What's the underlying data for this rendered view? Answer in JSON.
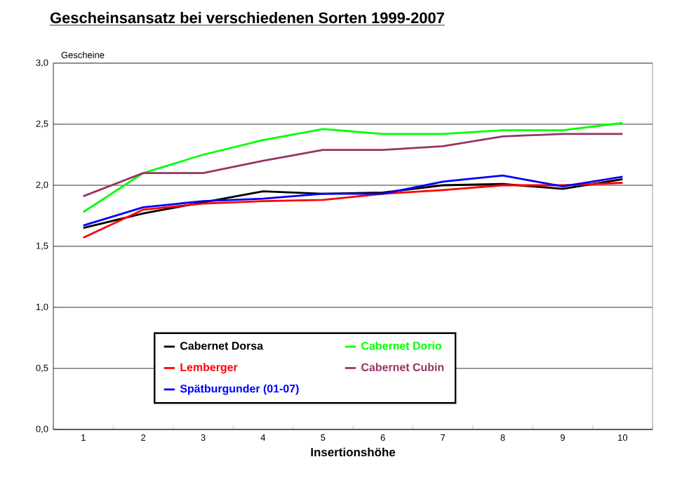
{
  "chart_data": {
    "type": "line",
    "title": "Gescheinsansatz bei verschiedenen Sorten 1999-2007",
    "xlabel": "Insertionshöhe",
    "ylabel": "Gescheine",
    "categories": [
      "1",
      "2",
      "3",
      "4",
      "5",
      "6",
      "7",
      "8",
      "9",
      "10"
    ],
    "ylim": [
      0,
      3
    ],
    "yticks": [
      {
        "value": 0,
        "label": "0,0"
      },
      {
        "value": 0.5,
        "label": "0,5"
      },
      {
        "value": 1,
        "label": "1,0"
      },
      {
        "value": 1.5,
        "label": "1,5"
      },
      {
        "value": 2,
        "label": "2,0"
      },
      {
        "value": 2.5,
        "label": "2,5"
      },
      {
        "value": 3,
        "label": "3,0"
      }
    ],
    "grid": "y",
    "legend": "bottom",
    "marker": "none",
    "line_style": "solid",
    "series": [
      {
        "name": "Cabernet Dorsa",
        "color": "#000000",
        "values": [
          1.65,
          1.77,
          1.86,
          1.95,
          1.93,
          1.94,
          2.0,
          2.01,
          1.97,
          2.05
        ]
      },
      {
        "name": "Cabernet Dorio",
        "color": "#00ff00",
        "values": [
          1.78,
          2.1,
          2.25,
          2.37,
          2.46,
          2.42,
          2.42,
          2.45,
          2.45,
          2.51
        ]
      },
      {
        "name": "Lemberger",
        "color": "#ff0000",
        "values": [
          1.57,
          1.8,
          1.85,
          1.87,
          1.88,
          1.93,
          1.96,
          2.0,
          2.0,
          2.02
        ]
      },
      {
        "name": "Cabernet Cubin",
        "color": "#993366",
        "values": [
          1.91,
          2.1,
          2.1,
          2.2,
          2.29,
          2.29,
          2.32,
          2.4,
          2.42,
          2.42
        ]
      },
      {
        "name": "Spätburgunder (01-07)",
        "color": "#0000ff",
        "values": [
          1.67,
          1.82,
          1.87,
          1.89,
          1.93,
          1.93,
          2.03,
          2.08,
          1.99,
          2.07
        ]
      }
    ]
  }
}
